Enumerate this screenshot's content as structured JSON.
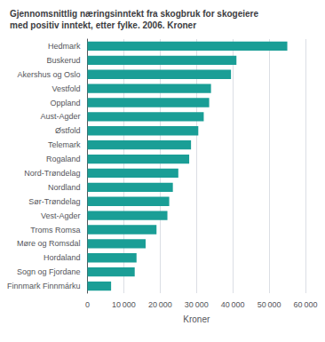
{
  "chart_data": {
    "type": "bar",
    "orientation": "horizontal",
    "title": "Gjennomsnittlig næringsinntekt fra skogbruk for skogeiere\nmed positiv inntekt, etter fylke. 2006. Kroner",
    "xlabel": "Kroner",
    "categories": [
      "Hedmark",
      "Buskerud",
      "Akershus og Oslo",
      "Vestfold",
      "Oppland",
      "Aust-Agder",
      "Østfold",
      "Telemark",
      "Rogaland",
      "Nord-Trøndelag",
      "Nordland",
      "Sør-Trøndelag",
      "Vest-Agder",
      "Troms Romsa",
      "Møre og Romsdal",
      "Hordaland",
      "Sogn og Fjordane",
      "Finnmark Finnmárku"
    ],
    "values": [
      55000,
      41000,
      39500,
      34000,
      33500,
      32000,
      30500,
      28500,
      28000,
      25000,
      23500,
      22500,
      22000,
      19000,
      16000,
      13500,
      13000,
      6500
    ],
    "color": "#1a9e96",
    "xlim": [
      0,
      60000
    ],
    "xticks": [
      0,
      {
        "value": 10000,
        "label": "10 000"
      },
      {
        "value": 20000,
        "label": "20 000"
      },
      {
        "value": 30000,
        "label": "30 000"
      },
      {
        "value": 40000,
        "label": "40 000"
      },
      {
        "value": 50000,
        "label": "50 000"
      },
      {
        "value": 60000,
        "label": "60 000"
      }
    ],
    "grid": true
  }
}
